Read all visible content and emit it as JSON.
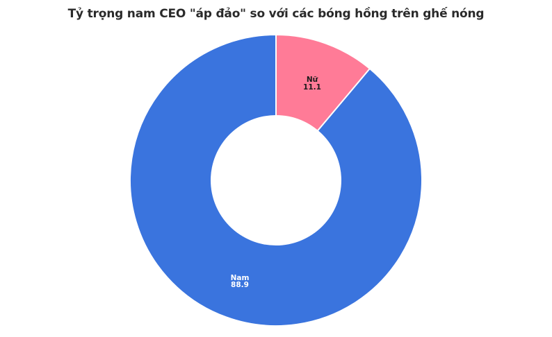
{
  "chart_data": {
    "type": "pie",
    "subtype": "donut",
    "title": "Tỷ trọng nam CEO \"áp đảo\" so với các bóng hồng trên ghế nóng",
    "categories": [
      "Nữ",
      "Nam"
    ],
    "values": [
      11.1,
      88.9
    ],
    "colors": [
      "#FF7B97",
      "#3A74DE"
    ],
    "label_colors": [
      "#1a1a1a",
      "#ffffff"
    ],
    "hole_ratio": 0.45,
    "start_angle_deg": 0,
    "direction": "clockwise",
    "legend": "none"
  },
  "labels": {
    "nu": {
      "name": "Nữ",
      "value": "11.1"
    },
    "nam": {
      "name": "Nam",
      "value": "88.9"
    }
  }
}
